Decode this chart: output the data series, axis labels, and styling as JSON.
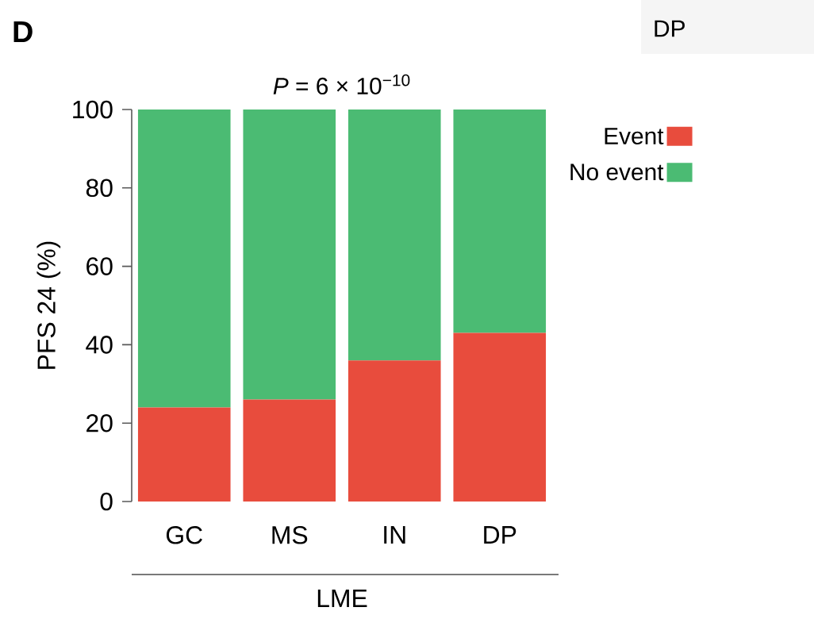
{
  "chart_data": {
    "type": "bar",
    "stacked": true,
    "title": "*P* = 6 × 10$^{−10}$",
    "xlabel": "LME",
    "ylabel": "PFS 24 (%)",
    "categories": [
      "GC",
      "MS",
      "IN",
      "DP"
    ],
    "series": [
      {
        "name": "Event",
        "color": "#e84c3d",
        "values": [
          24,
          26,
          36,
          43
        ]
      },
      {
        "name": "No event",
        "color": "#4bbb73",
        "values": [
          76,
          74,
          64,
          57
        ]
      }
    ],
    "ylim": [
      0,
      100
    ],
    "yticks": [
      0,
      20,
      40,
      60,
      80,
      100
    ],
    "grid": false,
    "legend": "top right",
    "annotations": [
      "**D**",
      "DP"
    ]
  }
}
